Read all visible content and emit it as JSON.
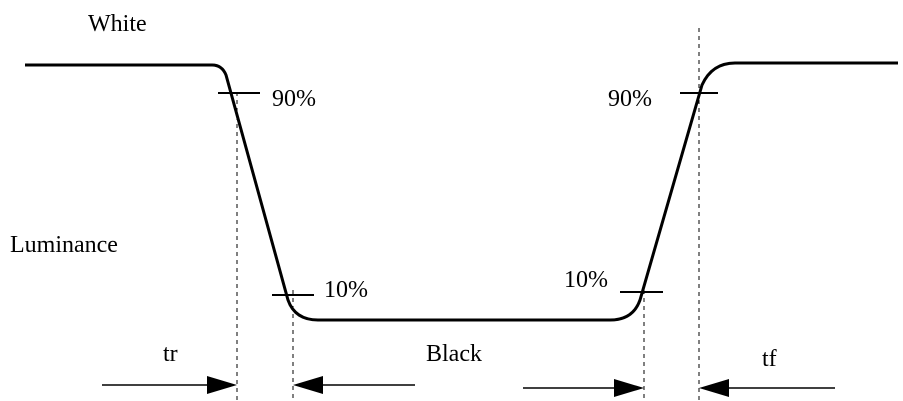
{
  "labels": {
    "white": "White",
    "luminance": "Luminance",
    "black": "Black",
    "falling_90": "90%",
    "falling_10": "10%",
    "rising_90": "90%",
    "rising_10": "10%",
    "rise_time": "tr",
    "fall_time": "tf"
  },
  "colors": {
    "line": "#000000",
    "background": "#ffffff"
  }
}
